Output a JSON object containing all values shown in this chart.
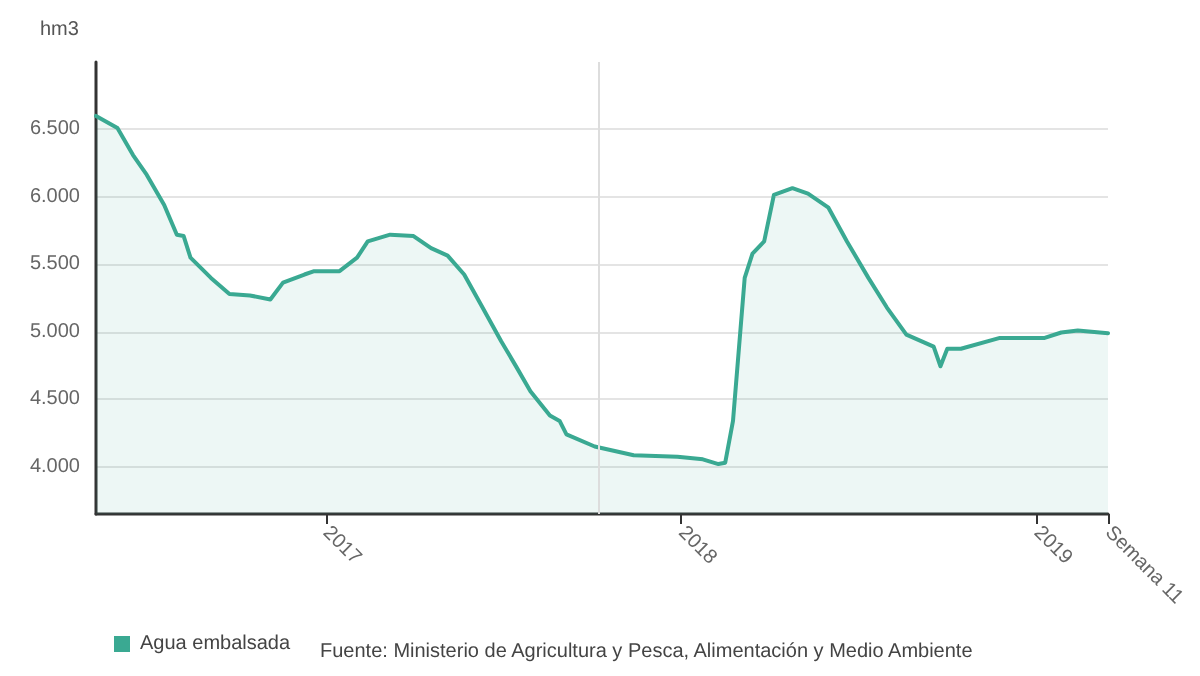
{
  "chart_data": {
    "type": "area",
    "ylabel": "hm3",
    "x": [
      "2016-05-10",
      "2016-06-01",
      "2016-06-17",
      "2016-07-01",
      "2016-07-19",
      "2016-08-01",
      "2016-08-08",
      "2016-08-15",
      "2016-09-05",
      "2016-09-24",
      "2016-10-15",
      "2016-11-05",
      "2016-11-18",
      "2016-12-10",
      "2016-12-20",
      "2017-01-15",
      "2017-02-02",
      "2017-02-13",
      "2017-03-08",
      "2017-04-01",
      "2017-04-19",
      "2017-05-06",
      "2017-05-23",
      "2017-06-09",
      "2017-06-30",
      "2017-07-16",
      "2017-07-30",
      "2017-08-19",
      "2017-08-29",
      "2017-09-05",
      "2017-10-04",
      "2017-11-13",
      "2017-12-28",
      "2018-01-23",
      "2018-02-08",
      "2018-02-15",
      "2018-02-23",
      "2018-03-07",
      "2018-03-15",
      "2018-03-27",
      "2018-04-06",
      "2018-04-25",
      "2018-05-11",
      "2018-06-01",
      "2018-06-20",
      "2018-07-12",
      "2018-07-31",
      "2018-08-20",
      "2018-09-17",
      "2018-09-24",
      "2018-10-01",
      "2018-10-15",
      "2018-11-24",
      "2019-01-09",
      "2019-01-26",
      "2019-02-12",
      "2019-03-15"
    ],
    "series": [
      {
        "name": "Agua embalsada",
        "color": "#3aa992",
        "values": [
          6600,
          6510,
          6310,
          6165,
          5940,
          5720,
          5710,
          5550,
          5400,
          5280,
          5270,
          5240,
          5365,
          5425,
          5450,
          5450,
          5550,
          5670,
          5720,
          5710,
          5620,
          5565,
          5425,
          5205,
          4930,
          4735,
          4560,
          4380,
          4340,
          4240,
          4150,
          4085,
          4075,
          4055,
          4020,
          4030,
          4340,
          5400,
          5580,
          5670,
          6015,
          6065,
          6025,
          5920,
          5670,
          5400,
          5180,
          4980,
          4890,
          4745,
          4875,
          4875,
          4955,
          4955,
          4995,
          5010,
          4990
        ]
      }
    ],
    "xlim": [
      "2016-05-10",
      "2019-03-15"
    ],
    "xticks": [
      {
        "value": "2017-01-01",
        "label": "2017"
      },
      {
        "value": "2018-01-01",
        "label": "2018"
      },
      {
        "value": "2019-01-01",
        "label": "2019"
      },
      {
        "value": "2019-03-15",
        "label": "Semana 11"
      }
    ],
    "ylim": [
      3650,
      7000
    ],
    "yticks": [
      {
        "value": 4000,
        "label": "4.000"
      },
      {
        "value": 4500,
        "label": "4.500"
      },
      {
        "value": 5000,
        "label": "5.000"
      },
      {
        "value": 5500,
        "label": "5.500"
      },
      {
        "value": 6000,
        "label": "6.000"
      },
      {
        "value": 6500,
        "label": "6.500"
      }
    ],
    "ref_lines": [
      {
        "axis": "x",
        "value": "2017-10-08",
        "color": "#dddddd"
      }
    ],
    "grid": "y",
    "legend": "bottom left",
    "marker": "none",
    "line_style": "solid",
    "annotations": [
      "Fuente: Ministerio de Agricultura y Pesca, Alimentación y Medio Ambiente"
    ]
  }
}
